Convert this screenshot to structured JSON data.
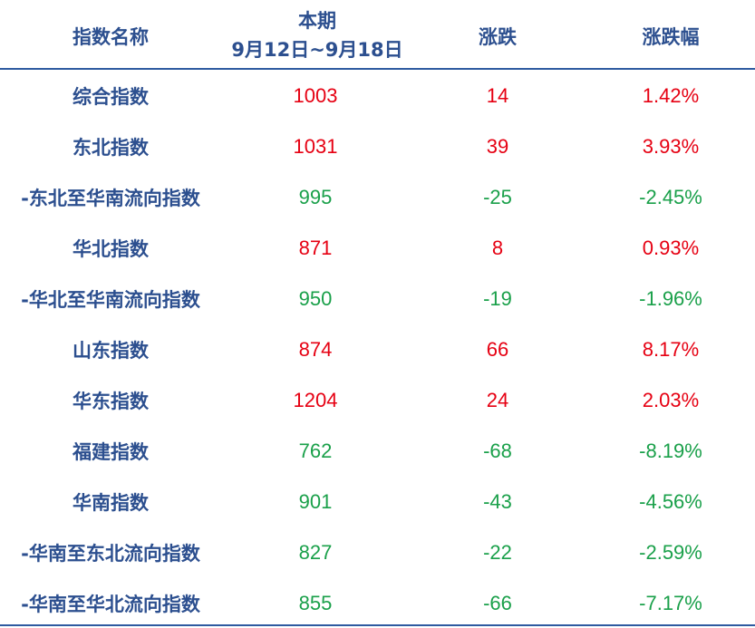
{
  "header": {
    "name": "指数名称",
    "period": "本期",
    "period_range": "9月12日~9月18日",
    "change": "涨跌",
    "change_pct": "涨跌幅"
  },
  "table": {
    "rows": [
      [
        "综合指数",
        "1003",
        "14",
        "1.42%"
      ],
      [
        "东北指数",
        "1031",
        "39",
        "3.93%"
      ],
      [
        "-东北至华南流向指数",
        "995",
        "-25",
        "-2.45%"
      ],
      [
        "华北指数",
        "871",
        "8",
        "0.93%"
      ],
      [
        "-华北至华南流向指数",
        "950",
        "-19",
        "-1.96%"
      ],
      [
        "山东指数",
        "874",
        "66",
        "8.17%"
      ],
      [
        "华东指数",
        "1204",
        "24",
        "2.03%"
      ],
      [
        "福建指数",
        "762",
        "-68",
        "-8.19%"
      ],
      [
        "华南指数",
        "901",
        "-43",
        "-4.56%"
      ],
      [
        "-华南至东北流向指数",
        "827",
        "-22",
        "-2.59%"
      ],
      [
        "-华南至华北流向指数",
        "855",
        "-66",
        "-7.17%"
      ]
    ]
  }
}
